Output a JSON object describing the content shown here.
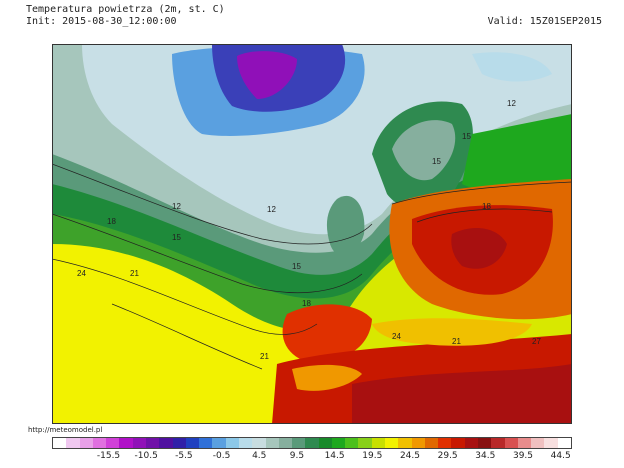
{
  "header": {
    "title": "Temperatura powietrza (2m, st. C)",
    "init": "Init: 2015-08-30_12:00:00",
    "valid": "Valid: 15Z01SEP2015"
  },
  "map": {
    "contour_labels": [
      "12",
      "12",
      "15",
      "15",
      "15",
      "15",
      "18",
      "18",
      "18",
      "21",
      "21",
      "21",
      "24",
      "24",
      "27",
      "12"
    ]
  },
  "footer": {
    "source": "http://meteomodel.pl"
  },
  "colorbar": {
    "colors": [
      "#ffffff",
      "#f0c8f0",
      "#e8a0e8",
      "#e070e0",
      "#d040d8",
      "#b010c8",
      "#9010b8",
      "#7010a8",
      "#5010a0",
      "#3020a8",
      "#2040c0",
      "#3070d8",
      "#5aa0e0",
      "#8cc8e8",
      "#b8dcea",
      "#c8dde0",
      "#a6c6bc",
      "#86af9e",
      "#5a9a7a",
      "#2f8a50",
      "#188a2a",
      "#1ea81e",
      "#4cc01c",
      "#88d018",
      "#c8e000",
      "#f2f200",
      "#f0c000",
      "#f09800",
      "#e06800",
      "#e03000",
      "#c81800",
      "#a81010",
      "#881010",
      "#b82828",
      "#d85050",
      "#e88c8c",
      "#f0c0c0",
      "#f8e0e0",
      "#ffffff"
    ],
    "tick_labels": [
      "-15.5",
      "-10.5",
      "-5.5",
      "-0.5",
      "4.5",
      "9.5",
      "14.5",
      "19.5",
      "24.5",
      "29.5",
      "34.5",
      "39.5",
      "44.5"
    ],
    "tick_values": [
      -15.5,
      -10.5,
      -5.5,
      -0.5,
      4.5,
      9.5,
      14.5,
      19.5,
      24.5,
      29.5,
      34.5,
      39.5,
      44.5
    ],
    "min": -23,
    "max": 46
  }
}
